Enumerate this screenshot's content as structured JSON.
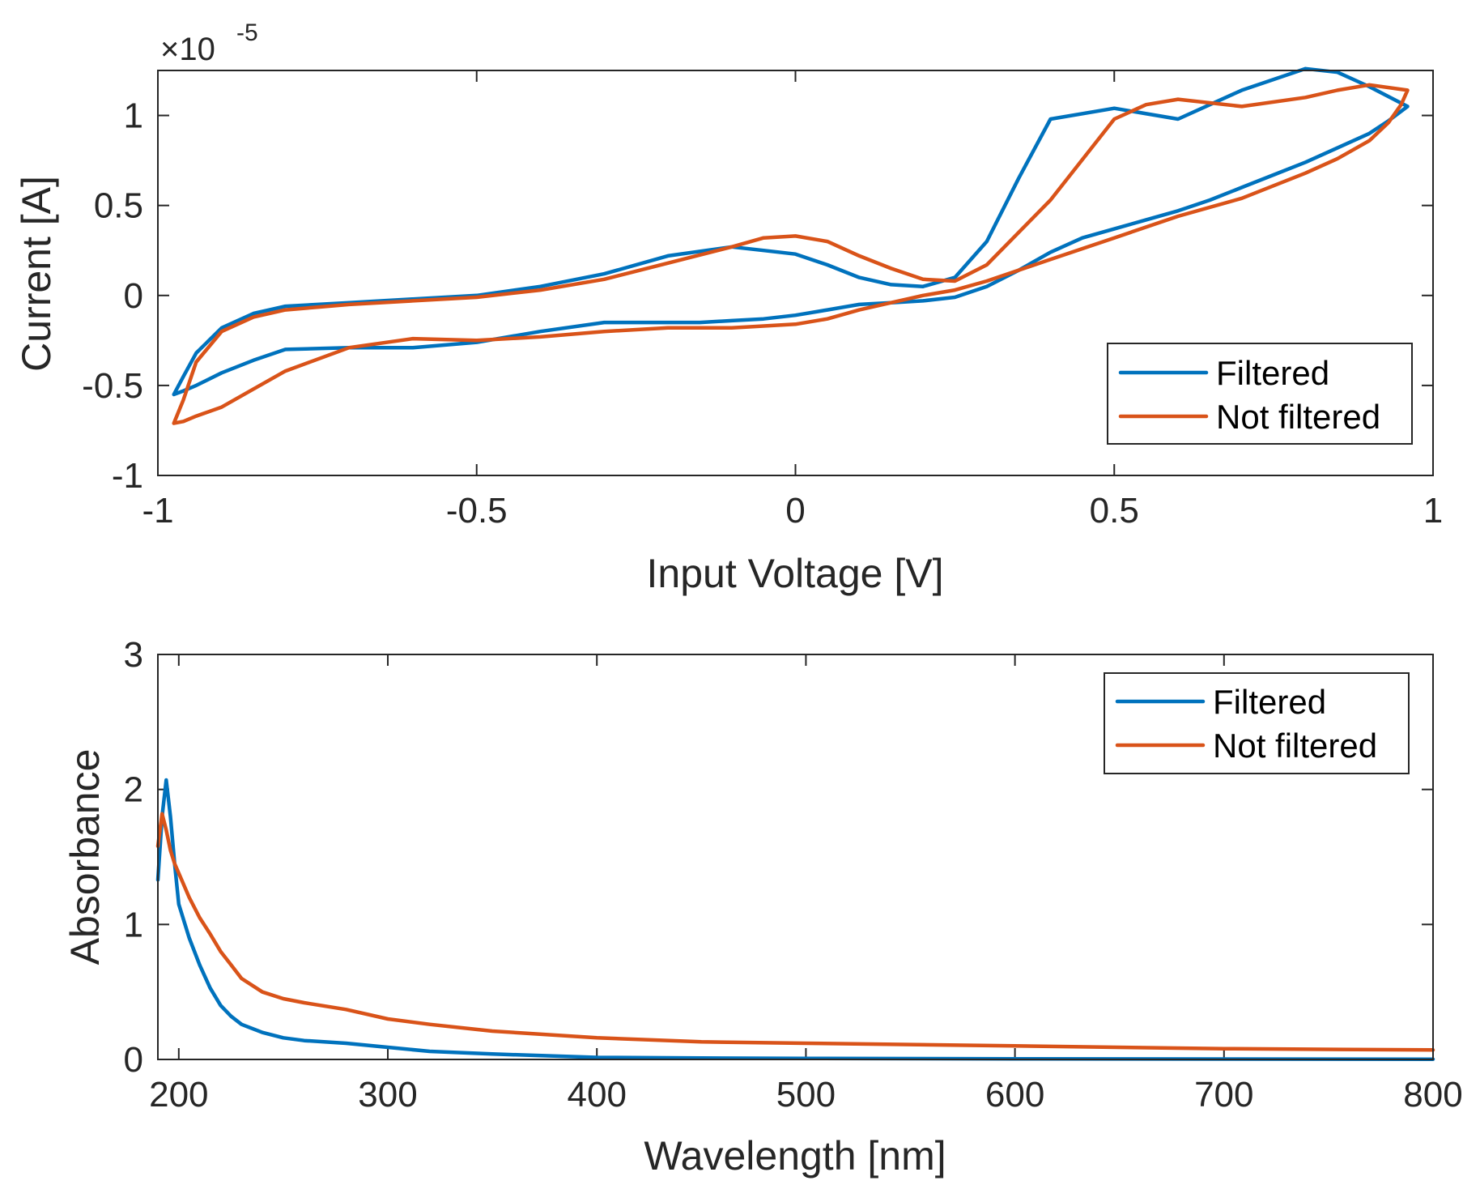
{
  "colors": {
    "filtered": "#0072BD",
    "not_filtered": "#D95319",
    "axes": "#262626"
  },
  "chart_data": [
    {
      "type": "line",
      "title": "",
      "xlabel": "Input Voltage [V]",
      "ylabel": "Current [A]",
      "y_exponent_label": "×10",
      "y_exponent_power": "-5",
      "xlim": [
        -1,
        1
      ],
      "ylim": [
        -1,
        1.25
      ],
      "xticks": [
        -1,
        -0.5,
        0,
        0.5,
        1
      ],
      "xtick_labels": [
        "-1",
        "-0.5",
        "0",
        "0.5",
        "1"
      ],
      "yticks": [
        -1,
        -0.5,
        0,
        0.5,
        1
      ],
      "ytick_labels": [
        "-1",
        "-0.5",
        "0",
        "0.5",
        "1"
      ],
      "legend_position": "bottom-right",
      "series": [
        {
          "name": "Filtered",
          "color": "#0072BD",
          "x": [
            -0.975,
            -0.96,
            -0.94,
            -0.9,
            -0.85,
            -0.8,
            -0.7,
            -0.6,
            -0.5,
            -0.4,
            -0.3,
            -0.2,
            -0.15,
            -0.1,
            -0.05,
            0,
            0.05,
            0.1,
            0.15,
            0.2,
            0.25,
            0.3,
            0.35,
            0.4,
            0.45,
            0.5,
            0.55,
            0.6,
            0.65,
            0.7,
            0.75,
            0.8,
            0.85,
            0.9,
            0.93,
            0.96,
            0.96,
            0.9,
            0.85,
            0.8,
            0.7,
            0.6,
            0.5,
            0.4,
            0.35,
            0.3,
            0.25,
            0.2,
            0.15,
            0.1,
            0.05,
            0,
            -0.05,
            -0.1,
            -0.2,
            -0.3,
            -0.4,
            -0.5,
            -0.6,
            -0.7,
            -0.8,
            -0.85,
            -0.9,
            -0.94,
            -0.96,
            -0.975
          ],
          "y": [
            -0.55,
            -0.53,
            -0.5,
            -0.43,
            -0.36,
            -0.3,
            -0.29,
            -0.29,
            -0.26,
            -0.2,
            -0.15,
            -0.15,
            -0.15,
            -0.14,
            -0.13,
            -0.11,
            -0.08,
            -0.05,
            -0.04,
            -0.03,
            -0.01,
            0.05,
            0.14,
            0.24,
            0.32,
            0.37,
            0.42,
            0.47,
            0.53,
            0.6,
            0.67,
            0.74,
            0.82,
            0.9,
            0.97,
            1.05,
            1.05,
            1.16,
            1.24,
            1.26,
            1.14,
            0.98,
            1.04,
            0.98,
            0.65,
            0.3,
            0.1,
            0.05,
            0.06,
            0.1,
            0.17,
            0.23,
            0.25,
            0.27,
            0.22,
            0.12,
            0.05,
            0.0,
            -0.02,
            -0.04,
            -0.06,
            -0.1,
            -0.18,
            -0.32,
            -0.45,
            -0.55
          ]
        },
        {
          "name": "Not filtered",
          "color": "#D95319",
          "x": [
            -0.975,
            -0.96,
            -0.94,
            -0.9,
            -0.85,
            -0.8,
            -0.7,
            -0.6,
            -0.5,
            -0.4,
            -0.3,
            -0.2,
            -0.1,
            0,
            0.05,
            0.1,
            0.15,
            0.2,
            0.25,
            0.3,
            0.4,
            0.5,
            0.6,
            0.7,
            0.8,
            0.85,
            0.9,
            0.93,
            0.95,
            0.96,
            0.96,
            0.9,
            0.85,
            0.8,
            0.7,
            0.6,
            0.55,
            0.5,
            0.4,
            0.3,
            0.25,
            0.2,
            0.15,
            0.1,
            0.05,
            0,
            -0.05,
            -0.1,
            -0.2,
            -0.3,
            -0.4,
            -0.5,
            -0.6,
            -0.7,
            -0.8,
            -0.85,
            -0.9,
            -0.94,
            -0.96,
            -0.975
          ],
          "y": [
            -0.71,
            -0.7,
            -0.67,
            -0.62,
            -0.52,
            -0.42,
            -0.29,
            -0.24,
            -0.25,
            -0.23,
            -0.2,
            -0.18,
            -0.18,
            -0.16,
            -0.13,
            -0.08,
            -0.04,
            0.0,
            0.03,
            0.08,
            0.2,
            0.32,
            0.44,
            0.54,
            0.68,
            0.76,
            0.86,
            0.96,
            1.06,
            1.14,
            1.14,
            1.17,
            1.14,
            1.1,
            1.05,
            1.09,
            1.06,
            0.98,
            0.53,
            0.17,
            0.08,
            0.09,
            0.15,
            0.22,
            0.3,
            0.33,
            0.32,
            0.27,
            0.18,
            0.09,
            0.03,
            -0.01,
            -0.03,
            -0.05,
            -0.08,
            -0.12,
            -0.2,
            -0.37,
            -0.58,
            -0.71
          ]
        }
      ]
    },
    {
      "type": "line",
      "title": "",
      "xlabel": "Wavelength [nm]",
      "ylabel": "Absorbance",
      "xlim": [
        190,
        800
      ],
      "ylim": [
        0,
        3
      ],
      "xticks": [
        200,
        300,
        400,
        500,
        600,
        700,
        800
      ],
      "xtick_labels": [
        "200",
        "300",
        "400",
        "500",
        "600",
        "700",
        "800"
      ],
      "yticks": [
        0,
        1,
        2,
        3
      ],
      "ytick_labels": [
        "0",
        "1",
        "2",
        "3"
      ],
      "legend_position": "top-right",
      "series": [
        {
          "name": "Filtered",
          "color": "#0072BD",
          "x": [
            190,
            192,
            194,
            196,
            198,
            200,
            205,
            210,
            215,
            220,
            225,
            230,
            240,
            250,
            260,
            280,
            300,
            320,
            350,
            400,
            450,
            500,
            600,
            700,
            800
          ],
          "y": [
            1.33,
            1.8,
            2.07,
            1.8,
            1.45,
            1.15,
            0.9,
            0.7,
            0.53,
            0.4,
            0.32,
            0.26,
            0.2,
            0.16,
            0.14,
            0.12,
            0.09,
            0.06,
            0.04,
            0.015,
            0.01,
            0.008,
            0.005,
            0.003,
            0.002
          ]
        },
        {
          "name": "Not filtered",
          "color": "#D95319",
          "x": [
            190,
            192,
            194,
            196,
            198,
            200,
            205,
            210,
            215,
            220,
            225,
            230,
            240,
            250,
            260,
            280,
            300,
            320,
            350,
            400,
            450,
            500,
            600,
            700,
            800
          ],
          "y": [
            1.58,
            1.82,
            1.7,
            1.55,
            1.45,
            1.38,
            1.2,
            1.05,
            0.93,
            0.8,
            0.7,
            0.6,
            0.5,
            0.45,
            0.42,
            0.37,
            0.3,
            0.26,
            0.21,
            0.16,
            0.13,
            0.12,
            0.1,
            0.08,
            0.07
          ]
        }
      ]
    }
  ]
}
